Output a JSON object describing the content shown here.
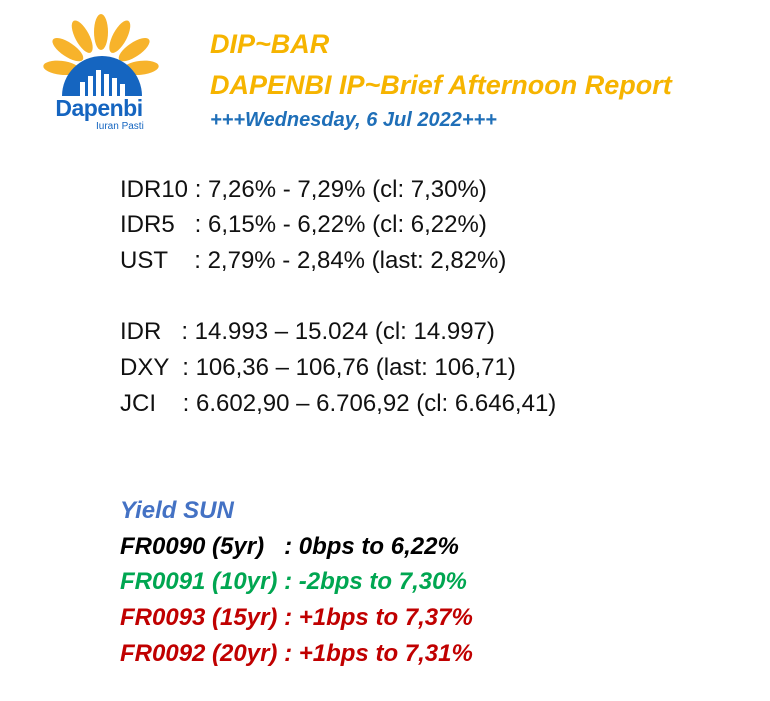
{
  "logo": {
    "brand": "Dapenbi",
    "tagline": "Iuran Pasti",
    "colors": {
      "petal": "#f7b32b",
      "arc": "#1565c0"
    }
  },
  "header": {
    "title": "DIP~BAR",
    "subtitle": "DAPENBI IP~Brief Afternoon Report",
    "date": "+++Wednesday, 6 Jul 2022+++"
  },
  "yields": [
    {
      "line": "IDR10 : 7,26% - 7,29% (cl: 7,30%)"
    },
    {
      "line": "IDR5   : 6,15% - 6,22% (cl: 6,22%)"
    },
    {
      "line": "UST    : 2,79% - 2,84% (last: 2,82%)"
    }
  ],
  "markets": [
    {
      "line": "IDR   : 14.993 – 15.024 (cl: 14.997)"
    },
    {
      "line": "DXY  : 106,36 – 106,76 (last: 106,71)"
    },
    {
      "line": "JCI    : 6.602,90 – 6.706,92 (cl: 6.646,41)"
    }
  ],
  "sun": {
    "heading": "Yield SUN",
    "heading_color": "#4472c4",
    "items": [
      {
        "text": "FR0090 (5yr)   : 0bps to 6,22%",
        "color": "#000000"
      },
      {
        "text": "FR0091 (10yr) : -2bps to 7,30%",
        "color": "#00a651"
      },
      {
        "text": "FR0093 (15yr) : +1bps to 7,37%",
        "color": "#c00000"
      },
      {
        "text": "FR0092 (20yr) : +1bps to 7,31%",
        "color": "#c00000"
      }
    ]
  }
}
